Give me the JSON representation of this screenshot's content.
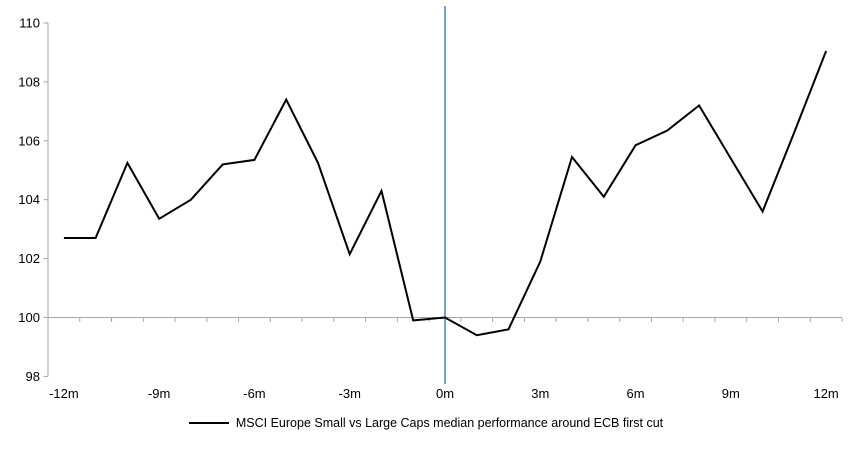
{
  "chart_data": {
    "type": "line",
    "title": "",
    "x": [
      -12,
      -11,
      -10,
      -9,
      -8,
      -7,
      -6,
      -5,
      -4,
      -3,
      -2,
      -1,
      0,
      1,
      2,
      3,
      4,
      5,
      6,
      7,
      8,
      9,
      10,
      11,
      12
    ],
    "series": [
      {
        "name": "MSCI Europe Small vs Large Caps median performance around ECB first cut",
        "color": "#000000",
        "values": [
          102.7,
          102.7,
          105.25,
          103.35,
          104.0,
          105.2,
          105.35,
          107.4,
          105.25,
          102.15,
          104.3,
          99.9,
          100.0,
          99.4,
          99.6,
          101.9,
          105.45,
          104.1,
          105.85,
          106.35,
          107.2,
          105.4,
          103.6,
          106.3,
          109.05
        ]
      }
    ],
    "ylim": [
      98,
      110
    ],
    "y_ticks": [
      110,
      108,
      106,
      104,
      102,
      100,
      98
    ],
    "x_tick_labels": [
      {
        "month": -12,
        "label": "-12m"
      },
      {
        "month": -9,
        "label": "-9m"
      },
      {
        "month": -6,
        "label": "-6m"
      },
      {
        "month": -3,
        "label": "-3m"
      },
      {
        "month": 0,
        "label": "0m"
      },
      {
        "month": 3,
        "label": "3m"
      },
      {
        "month": 6,
        "label": "6m"
      },
      {
        "month": 9,
        "label": "9m"
      },
      {
        "month": 12,
        "label": "12m"
      }
    ],
    "x_axis_crosses_at": 100,
    "event_line": {
      "at_month": 0,
      "color": "#76A3CF"
    },
    "axis_color": "#A6A6A6",
    "grid": false,
    "legend_position": "bottom-center"
  },
  "legend": {
    "label": "MSCI Europe Small vs Large Caps median performance around ECB first cut"
  }
}
